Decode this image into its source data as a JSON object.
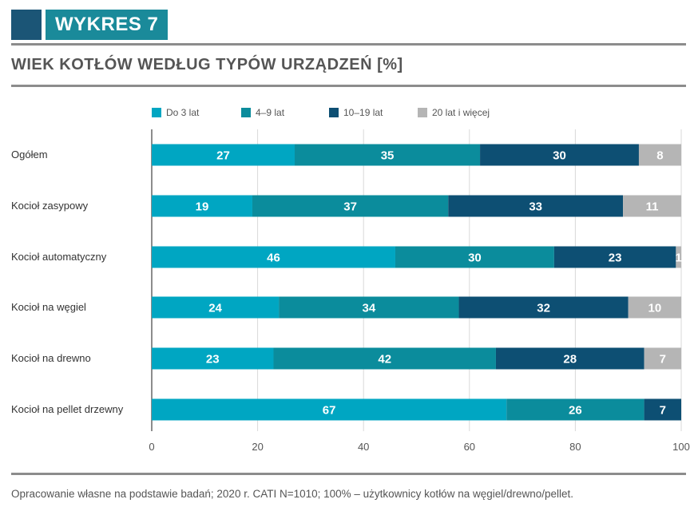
{
  "header": {
    "label": "WYKRES 7"
  },
  "chart_title": "WIEK KOTŁÓW WEDŁUG TYPÓW URZĄDZEŃ [%]",
  "footer": {
    "note": "Opracowanie własne na podstawie badań; 2020 r. CATI N=1010; 100% – użytkownicy kotłów na węgiel/drewno/pellet."
  },
  "colors": {
    "accent_dark": "#1b5576",
    "accent_teal": "#1a8a9a",
    "rule": "#8c8c8c"
  },
  "chart_data": {
    "type": "bar",
    "orientation": "horizontal",
    "stacked": true,
    "title": "WIEK KOTŁÓW WEDŁUG TYPÓW URZĄDZEŃ [%]",
    "categories": [
      "Ogółem",
      "Kocioł zasypowy",
      "Kocioł automatyczny",
      "Kocioł na węgiel",
      "Kocioł na drewno",
      "Kocioł na pellet drzewny"
    ],
    "series": [
      {
        "name": "Do 3 lat",
        "color": "#00a6c2",
        "values": [
          27,
          19,
          46,
          24,
          23,
          67
        ]
      },
      {
        "name": "4–9 lat",
        "color": "#0b8c9c",
        "values": [
          35,
          37,
          30,
          34,
          42,
          26
        ]
      },
      {
        "name": "10–19 lat",
        "color": "#0d4f73",
        "values": [
          30,
          33,
          23,
          32,
          28,
          7
        ]
      },
      {
        "name": "20 lat i więcej",
        "color": "#b5b5b5",
        "values": [
          8,
          11,
          1,
          10,
          7,
          0
        ]
      }
    ],
    "xlim": [
      0,
      100
    ],
    "xticks": [
      0,
      20,
      40,
      60,
      80,
      100
    ],
    "legend": "top",
    "grid": true
  }
}
